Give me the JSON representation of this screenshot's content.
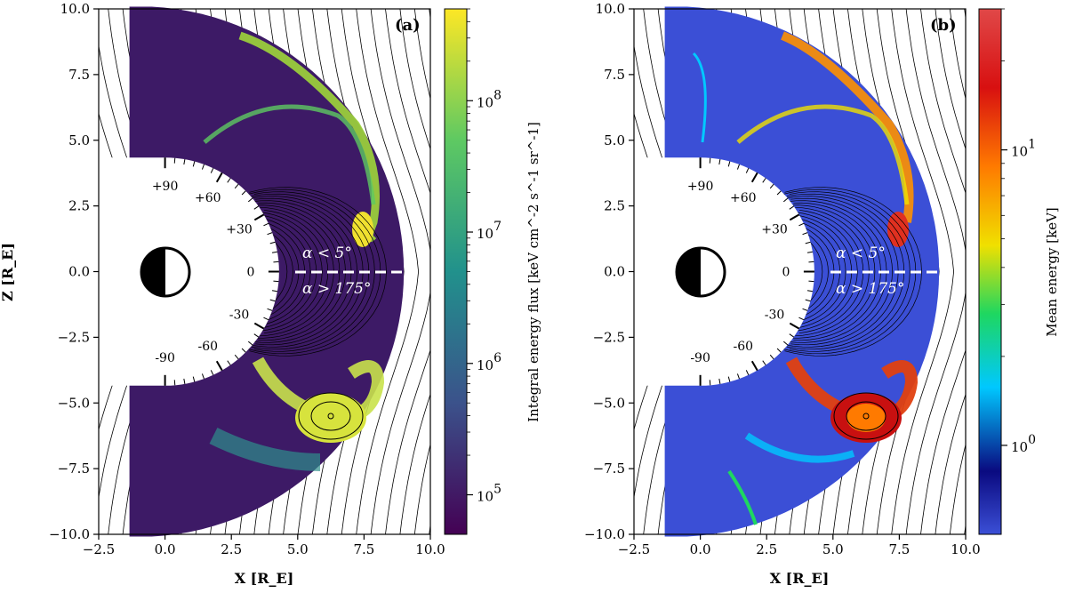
{
  "chart_data": [
    {
      "panel": "(a)",
      "type": "heatmap",
      "xlabel": "X [R_E]",
      "ylabel": "Z [R_E]",
      "xlim": [
        -2.5,
        10.0
      ],
      "ylim": [
        -10.0,
        10.0
      ],
      "xticks": [
        "−2.5",
        "0.0",
        "2.5",
        "5.0",
        "7.5",
        "10.0"
      ],
      "yticks": [
        "10.0",
        "7.5",
        "5.0",
        "2.5",
        "0.0",
        "−2.5",
        "−5.0",
        "−7.5",
        "−10.0"
      ],
      "colorbar": {
        "label": "Integral energy flux [keV cm^-2 s^-1 sr^-1]",
        "scale": "log",
        "range": [
          50000,
          500000000
        ],
        "colormap": "viridis",
        "ticks": [
          "10^5",
          "10^6",
          "10^7",
          "10^8"
        ]
      },
      "angle_labels": [
        "+90",
        "+60",
        "+30",
        "0",
        "-30",
        "-60",
        "-90"
      ],
      "annotations": [
        "α < 5°",
        "α > 175°"
      ]
    },
    {
      "panel": "(b)",
      "type": "heatmap",
      "xlabel": "X [R_E]",
      "ylabel": "",
      "xlim": [
        -2.5,
        10.0
      ],
      "ylim": [
        -10.0,
        10.0
      ],
      "xticks": [
        "−2.5",
        "0.0",
        "2.5",
        "5.0",
        "7.5",
        "10.0"
      ],
      "yticks": [
        "10.0",
        "7.5",
        "5.0",
        "2.5",
        "0.0",
        "−2.5",
        "−5.0",
        "−7.5",
        "−10.0"
      ],
      "colorbar": {
        "label": "Mean energy [keV]",
        "scale": "log",
        "range": [
          0.5,
          30
        ],
        "colormap": "jet",
        "ticks": [
          "10^0",
          "10^1"
        ]
      },
      "angle_labels": [
        "+90",
        "+60",
        "+30",
        "0",
        "-30",
        "-60",
        "-90"
      ],
      "annotations": [
        "α < 5°",
        "α > 175°"
      ]
    }
  ],
  "colors": {
    "viridis": [
      "#440154",
      "#3b528b",
      "#21918c",
      "#5ec962",
      "#fde725"
    ],
    "jet": [
      "#3b4fd6",
      "#0a0a80",
      "#00c8ff",
      "#1ed760",
      "#f0e000",
      "#ff7a00",
      "#d81010",
      "#e04040"
    ],
    "field_line": "#000000",
    "dashed_line": "#ffffff"
  }
}
